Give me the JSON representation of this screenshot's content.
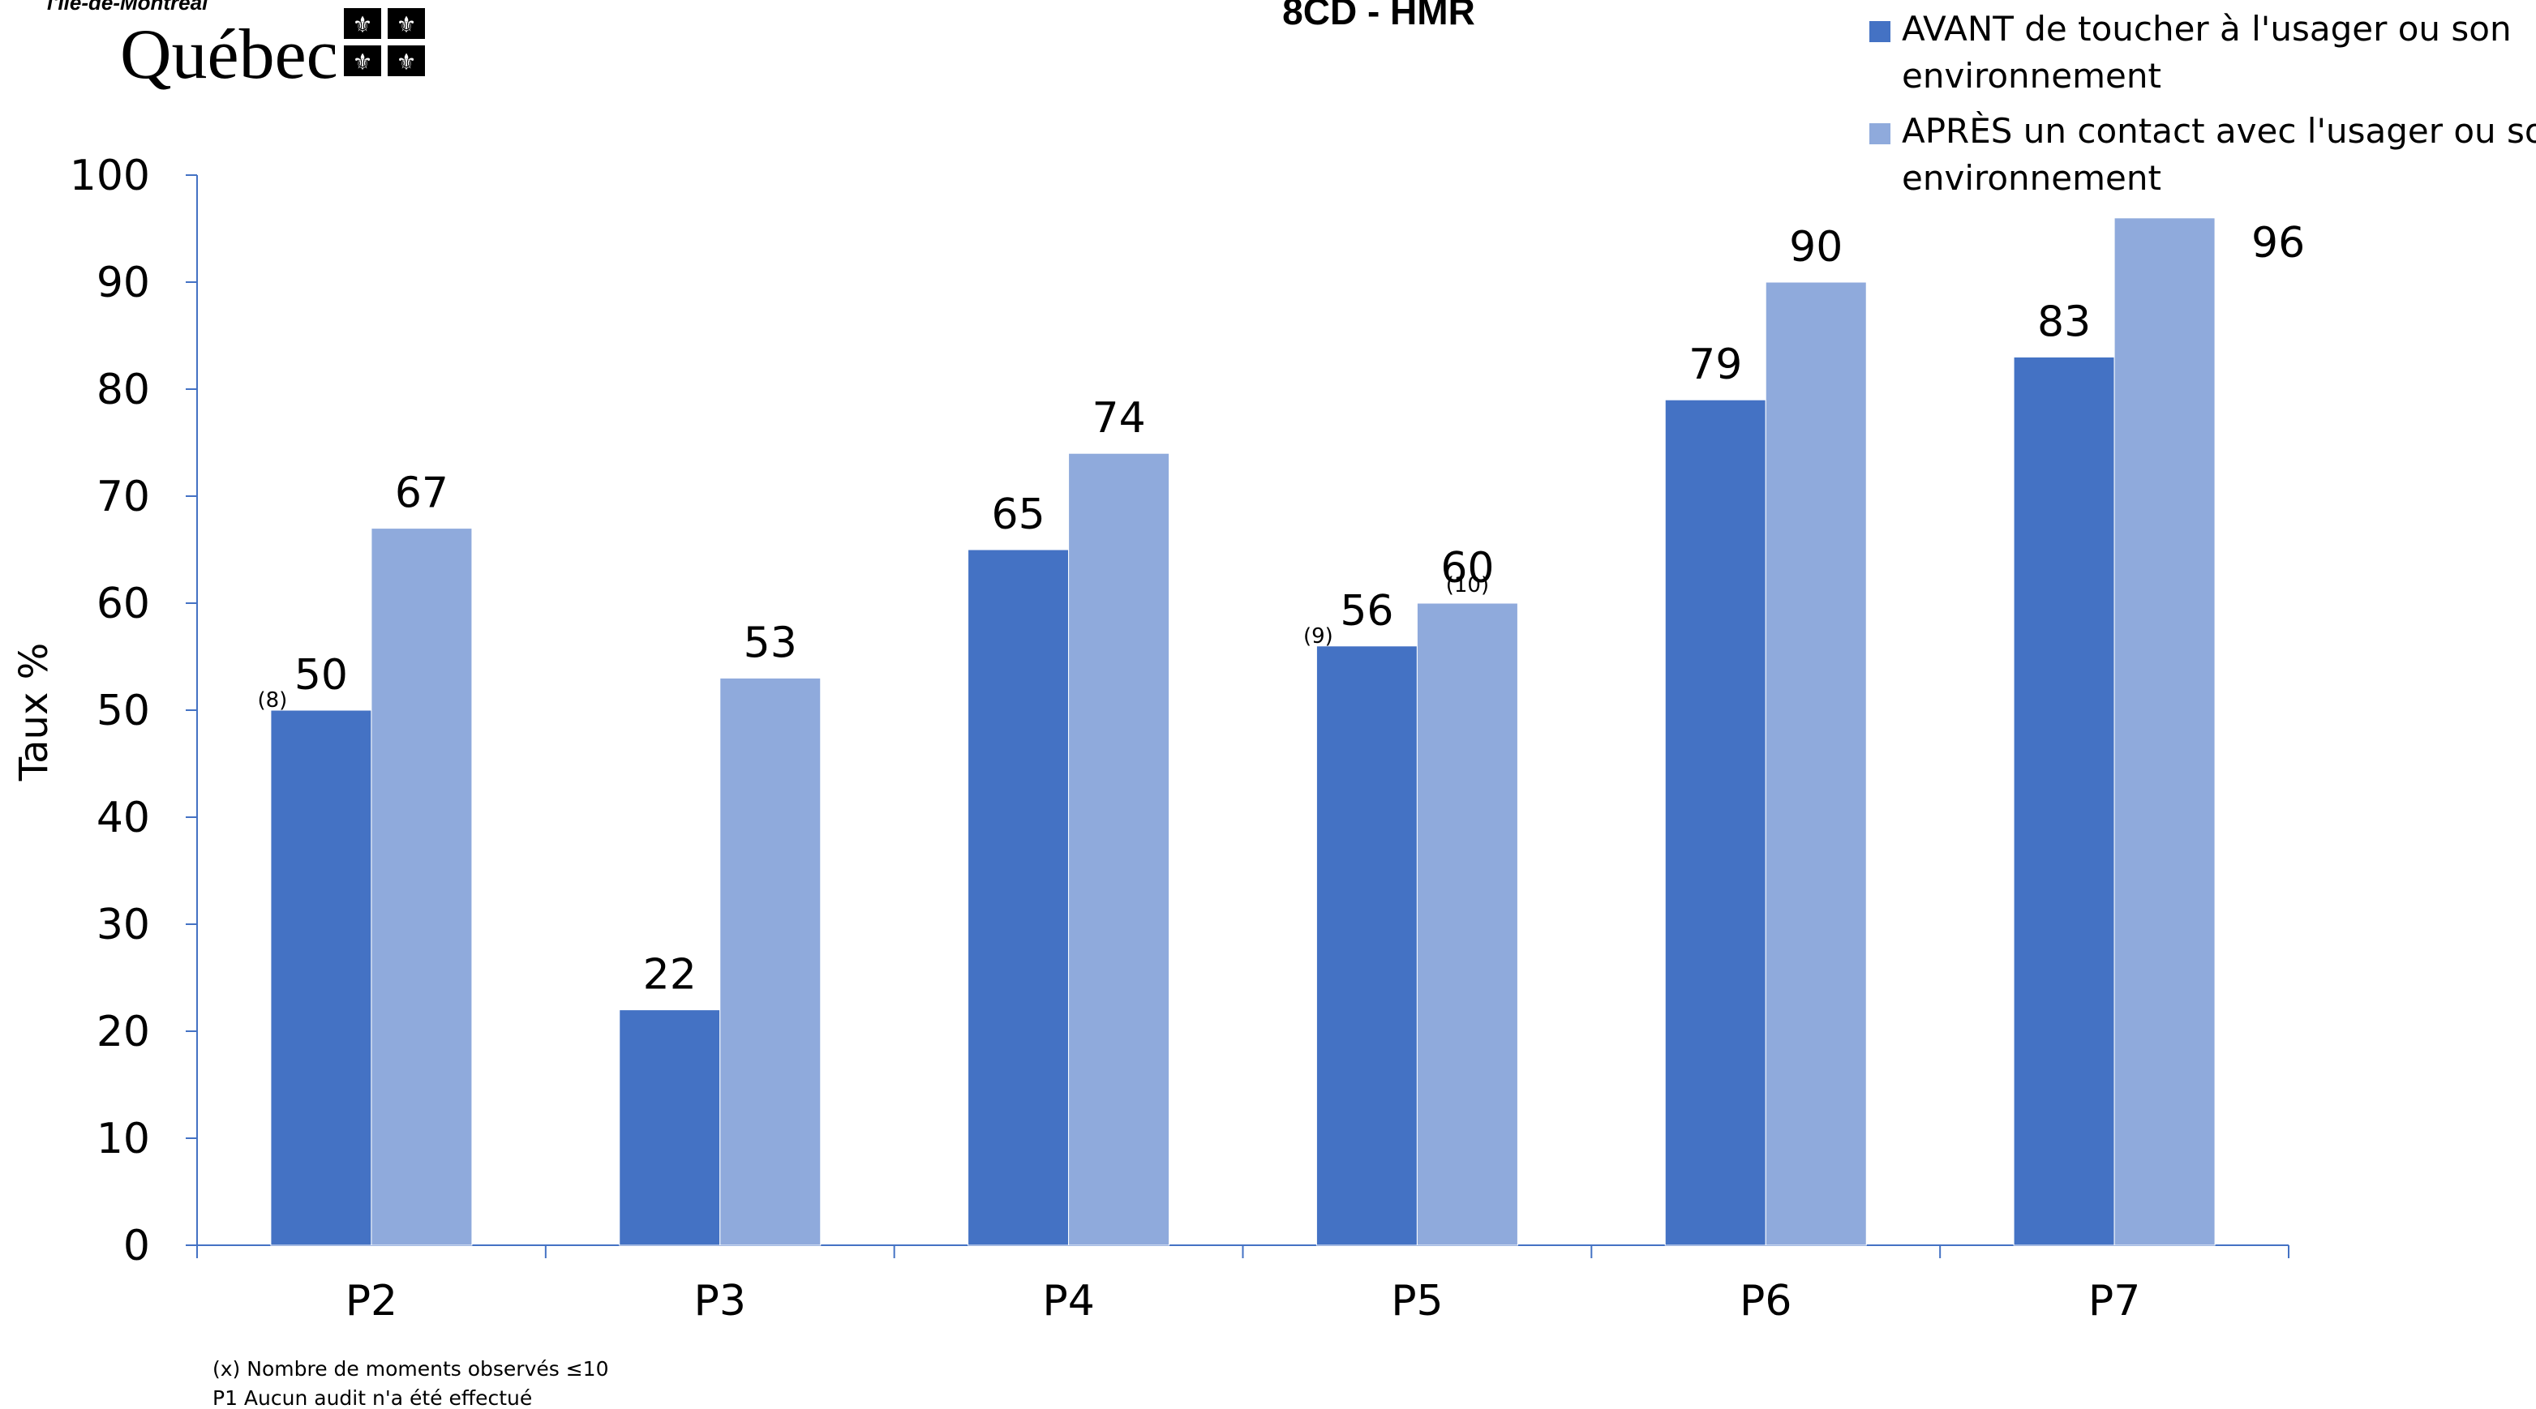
{
  "logo": {
    "subtitle": "l'Île-de-Montréal",
    "name": "Québec"
  },
  "footnotes": [
    "(x) Nombre de moments observés ≤10",
    "P1 Aucun audit n'a été effectué"
  ],
  "colors": {
    "avant": "#4472C4",
    "apres": "#8FAADC",
    "axis": "#4472C4",
    "text": "#000000"
  },
  "chart_data": {
    "type": "bar",
    "title": "8CD - HMR",
    "ylabel": "Taux %",
    "xlabel": "",
    "ylim": [
      0,
      100
    ],
    "yticks": [
      0,
      10,
      20,
      30,
      40,
      50,
      60,
      70,
      80,
      90,
      100
    ],
    "grid": false,
    "legend_position": "top-right",
    "categories": [
      "P2",
      "P3",
      "P4",
      "P5",
      "P6",
      "P7"
    ],
    "series": [
      {
        "name": "AVANT de toucher à l'usager ou son environnement",
        "color": "#4472C4",
        "values": [
          50,
          22,
          65,
          56,
          79,
          83
        ],
        "labels": [
          "50",
          "22",
          "65",
          "56",
          "79",
          "83"
        ],
        "notes": [
          "(8)",
          "",
          "",
          "(9)",
          "",
          ""
        ]
      },
      {
        "name": "APRÈS un contact avec l'usager ou son environnement",
        "color": "#8FAADC",
        "values": [
          67,
          53,
          74,
          60,
          90,
          96
        ],
        "labels": [
          "67",
          "53",
          "74",
          "60",
          "90",
          "96"
        ],
        "notes": [
          "",
          "",
          "",
          "(10)",
          "",
          ""
        ]
      }
    ]
  }
}
